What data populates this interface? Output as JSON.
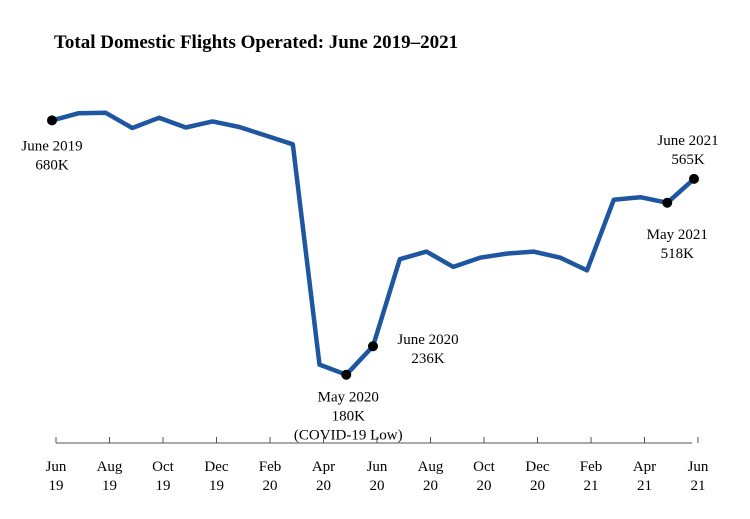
{
  "chart_data": {
    "type": "line",
    "title": "Total Domestic Flights Operated: June 2019–2021",
    "xlabel": "",
    "ylabel": "",
    "grid": false,
    "legend": "none",
    "line_color": "#1f56a0",
    "x": [
      "Jun 2019",
      "Jul 2019",
      "Aug 2019",
      "Sep 2019",
      "Oct 2019",
      "Nov 2019",
      "Dec 2019",
      "Jan 2020",
      "Feb 2020",
      "Mar 2020",
      "Apr 2020",
      "May 2020",
      "Jun 2020",
      "Jul 2020",
      "Aug 2020",
      "Sep 2020",
      "Oct 2020",
      "Nov 2020",
      "Dec 2020",
      "Jan 2021",
      "Feb 2021",
      "Mar 2021",
      "Apr 2021",
      "May 2021",
      "Jun 2021"
    ],
    "series": [
      {
        "values": [
          680,
          694,
          695,
          665,
          685,
          666,
          678,
          667,
          650,
          633,
          200,
          180,
          236,
          407,
          422,
          392,
          410,
          418,
          422,
          410,
          385,
          524,
          529,
          518,
          565
        ]
      }
    ],
    "ylim": [
      150,
      720
    ],
    "x_ticks": [
      {
        "index": 0,
        "month": "Jun",
        "year": "19"
      },
      {
        "index": 2,
        "month": "Aug",
        "year": "19"
      },
      {
        "index": 4,
        "month": "Oct",
        "year": "19"
      },
      {
        "index": 6,
        "month": "Dec",
        "year": "19"
      },
      {
        "index": 8,
        "month": "Feb",
        "year": "20"
      },
      {
        "index": 10,
        "month": "Apr",
        "year": "20"
      },
      {
        "index": 12,
        "month": "Jun",
        "year": "20"
      },
      {
        "index": 14,
        "month": "Aug",
        "year": "20"
      },
      {
        "index": 16,
        "month": "Oct",
        "year": "20"
      },
      {
        "index": 18,
        "month": "Dec",
        "year": "20"
      },
      {
        "index": 20,
        "month": "Feb",
        "year": "21"
      },
      {
        "index": 22,
        "month": "Apr",
        "year": "21"
      },
      {
        "index": 24,
        "month": "Jun",
        "year": "21"
      }
    ],
    "annotations": [
      {
        "index": 0,
        "lines": [
          "June 2019",
          "680K"
        ]
      },
      {
        "index": 11,
        "lines": [
          "May 2020",
          "180K",
          "(COVID-19 Low)"
        ]
      },
      {
        "index": 12,
        "lines": [
          "June 2020",
          "236K"
        ]
      },
      {
        "index": 23,
        "lines": [
          "May 2021",
          "518K"
        ]
      },
      {
        "index": 24,
        "lines": [
          "June 2021",
          "565K"
        ]
      }
    ]
  }
}
